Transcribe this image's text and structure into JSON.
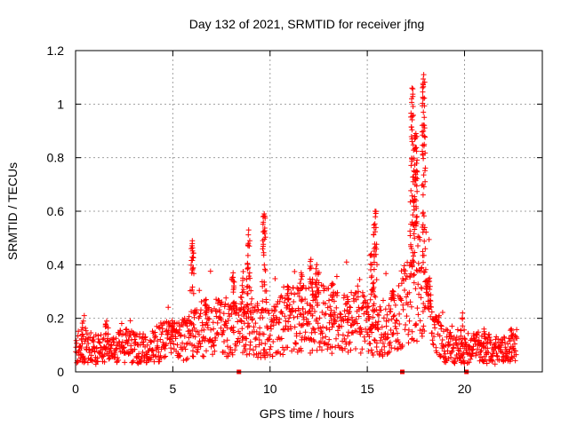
{
  "chart_data": {
    "type": "scatter",
    "title": "Day 132 of 2021, SRMTID for receiver jfng",
    "xlabel": "GPS time / hours",
    "ylabel": "SRMTID / TECUs",
    "xlim": [
      0,
      24
    ],
    "ylim": [
      0,
      1.2
    ],
    "x_ticks": [
      0,
      5,
      10,
      15,
      20
    ],
    "x_tick_labels": [
      "0",
      "5",
      "10",
      "15",
      "20"
    ],
    "y_ticks": [
      0,
      0.2,
      0.4,
      0.6,
      0.8,
      1.0,
      1.2
    ],
    "y_tick_labels": [
      "0",
      "0.2",
      "0.4",
      "0.6",
      "0.8",
      "1",
      "1.2"
    ],
    "grid": true,
    "marker": "+",
    "series": [
      {
        "name": "SRMTID",
        "color": "#ff0000",
        "x_range": [
          0,
          22.7
        ],
        "baseline_profile": [
          [
            0.0,
            0.09
          ],
          [
            0.5,
            0.1
          ],
          [
            1.0,
            0.08
          ],
          [
            1.5,
            0.09
          ],
          [
            2.0,
            0.09
          ],
          [
            2.5,
            0.1
          ],
          [
            3.0,
            0.09
          ],
          [
            3.5,
            0.09
          ],
          [
            4.0,
            0.1
          ],
          [
            4.5,
            0.11
          ],
          [
            5.0,
            0.12
          ],
          [
            5.5,
            0.12
          ],
          [
            6.0,
            0.14
          ],
          [
            6.5,
            0.16
          ],
          [
            7.0,
            0.17
          ],
          [
            7.5,
            0.16
          ],
          [
            8.0,
            0.15
          ],
          [
            8.5,
            0.17
          ],
          [
            9.0,
            0.17
          ],
          [
            9.5,
            0.15
          ],
          [
            10.0,
            0.15
          ],
          [
            10.5,
            0.17
          ],
          [
            11.0,
            0.19
          ],
          [
            11.5,
            0.2
          ],
          [
            12.0,
            0.19
          ],
          [
            12.5,
            0.21
          ],
          [
            13.0,
            0.2
          ],
          [
            13.5,
            0.18
          ],
          [
            14.0,
            0.18
          ],
          [
            14.5,
            0.19
          ],
          [
            15.0,
            0.17
          ],
          [
            15.5,
            0.15
          ],
          [
            16.0,
            0.17
          ],
          [
            16.5,
            0.21
          ],
          [
            17.0,
            0.26
          ],
          [
            17.5,
            0.33
          ],
          [
            18.0,
            0.28
          ],
          [
            18.5,
            0.13
          ],
          [
            19.0,
            0.1
          ],
          [
            19.5,
            0.08
          ],
          [
            20.0,
            0.08
          ],
          [
            20.5,
            0.1
          ],
          [
            21.0,
            0.09
          ],
          [
            21.5,
            0.08
          ],
          [
            22.0,
            0.08
          ],
          [
            22.7,
            0.1
          ]
        ],
        "peaks": [
          {
            "x": 0.4,
            "y": 0.19
          },
          {
            "x": 1.6,
            "y": 0.19
          },
          {
            "x": 5.0,
            "y": 0.17
          },
          {
            "x": 6.0,
            "y": 0.49
          },
          {
            "x": 6.7,
            "y": 0.27
          },
          {
            "x": 8.1,
            "y": 0.37
          },
          {
            "x": 8.6,
            "y": 0.35
          },
          {
            "x": 8.9,
            "y": 0.53
          },
          {
            "x": 9.7,
            "y": 0.59
          },
          {
            "x": 10.9,
            "y": 0.32
          },
          {
            "x": 11.6,
            "y": 0.37
          },
          {
            "x": 12.1,
            "y": 0.42
          },
          {
            "x": 12.4,
            "y": 0.4
          },
          {
            "x": 13.2,
            "y": 0.33
          },
          {
            "x": 14.0,
            "y": 0.27
          },
          {
            "x": 15.2,
            "y": 0.44
          },
          {
            "x": 15.4,
            "y": 0.6
          },
          {
            "x": 16.3,
            "y": 0.3
          },
          {
            "x": 17.3,
            "y": 1.06
          },
          {
            "x": 17.5,
            "y": 0.89
          },
          {
            "x": 17.9,
            "y": 1.11
          },
          {
            "x": 18.2,
            "y": 0.35
          },
          {
            "x": 19.9,
            "y": 0.22
          },
          {
            "x": 21.0,
            "y": 0.16
          },
          {
            "x": 22.4,
            "y": 0.16
          }
        ]
      }
    ],
    "gap_markers_x": [
      8.4,
      16.8,
      20.1
    ]
  }
}
